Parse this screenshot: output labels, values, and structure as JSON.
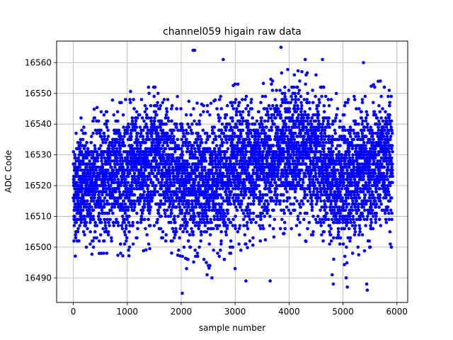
{
  "chart_data": {
    "type": "scatter",
    "title": "channel059 higain raw data",
    "xlabel": "sample number",
    "ylabel": "ADC Code",
    "xlim": [
      -310,
      6200
    ],
    "ylim": [
      16482,
      16567
    ],
    "x_ticks": [
      0,
      1000,
      2000,
      3000,
      4000,
      5000,
      6000
    ],
    "y_ticks": [
      16490,
      16500,
      16510,
      16520,
      16530,
      16540,
      16550,
      16560
    ],
    "grid": true,
    "marker_color": "#0000ff",
    "series": [
      {
        "name": "",
        "n_samples": 6000,
        "x_range": [
          0,
          5920
        ],
        "baseline": 16526,
        "envelope": [
          {
            "x": 0,
            "low": 16497,
            "high": 16541
          },
          {
            "x": 500,
            "low": 16498,
            "high": 16546
          },
          {
            "x": 1000,
            "low": 16497,
            "high": 16550
          },
          {
            "x": 1500,
            "low": 16500,
            "high": 16555
          },
          {
            "x": 2000,
            "low": 16497,
            "high": 16548
          },
          {
            "x": 2500,
            "low": 16493,
            "high": 16546
          },
          {
            "x": 3000,
            "low": 16498,
            "high": 16553
          },
          {
            "x": 3500,
            "low": 16502,
            "high": 16553
          },
          {
            "x": 4000,
            "low": 16505,
            "high": 16558
          },
          {
            "x": 4500,
            "low": 16500,
            "high": 16556
          },
          {
            "x": 5000,
            "low": 16494,
            "high": 16548
          },
          {
            "x": 5500,
            "low": 16500,
            "high": 16552
          },
          {
            "x": 5900,
            "low": 16500,
            "high": 16557
          }
        ],
        "outliers": [
          {
            "x": 2020,
            "y": 16485
          },
          {
            "x": 2220,
            "y": 16564
          },
          {
            "x": 2250,
            "y": 16564
          },
          {
            "x": 3850,
            "y": 16565
          },
          {
            "x": 2780,
            "y": 16561
          },
          {
            "x": 4300,
            "y": 16561
          },
          {
            "x": 4620,
            "y": 16561
          },
          {
            "x": 5380,
            "y": 16560
          },
          {
            "x": 2570,
            "y": 16490
          },
          {
            "x": 2100,
            "y": 16493
          },
          {
            "x": 3200,
            "y": 16489
          },
          {
            "x": 3650,
            "y": 16489
          },
          {
            "x": 4820,
            "y": 16488
          },
          {
            "x": 5080,
            "y": 16487
          },
          {
            "x": 5060,
            "y": 16490
          },
          {
            "x": 5450,
            "y": 16486
          },
          {
            "x": 5440,
            "y": 16488
          },
          {
            "x": 4800,
            "y": 16491
          },
          {
            "x": 2480,
            "y": 16491
          },
          {
            "x": 2900,
            "y": 16498
          },
          {
            "x": 3000,
            "y": 16493
          }
        ]
      }
    ]
  }
}
